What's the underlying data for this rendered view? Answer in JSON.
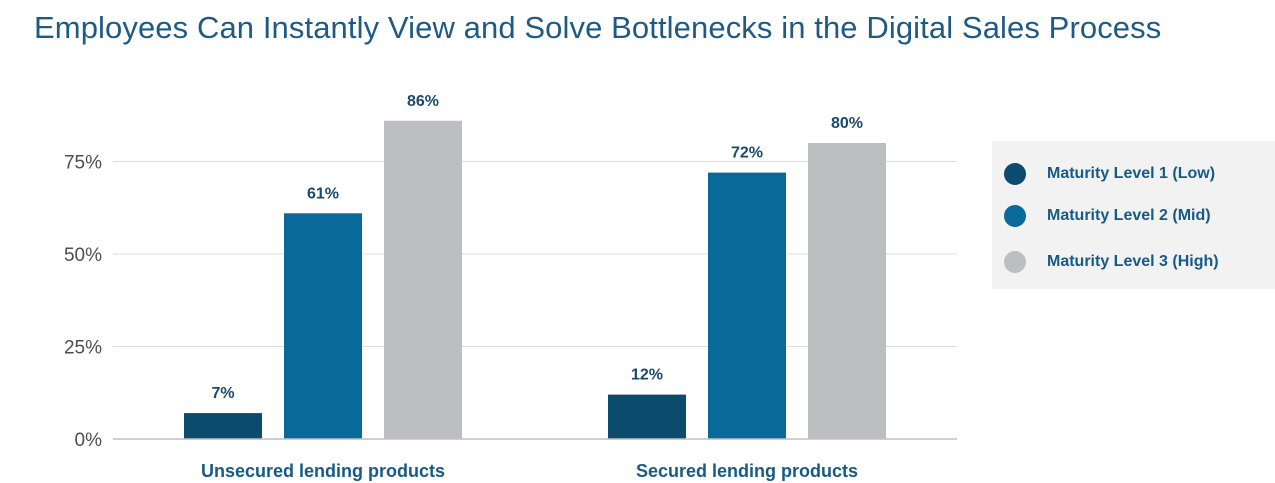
{
  "chart_data": {
    "type": "bar",
    "title": "Employees Can Instantly View and Solve Bottlenecks in the Digital Sales Process",
    "categories": [
      "Unsecured lending products",
      "Secured lending products"
    ],
    "series": [
      {
        "name": "Maturity Level 1 (Low)",
        "color": "#0a4b6e",
        "values": [
          7,
          12
        ],
        "labels": [
          "7%",
          "12%"
        ]
      },
      {
        "name": "Maturity Level 2 (Mid)",
        "color": "#076a9b",
        "values": [
          61,
          72
        ],
        "labels": [
          "61%",
          "72%"
        ]
      },
      {
        "name": "Maturity Level 3 (High)",
        "color": "#bdbec0",
        "values": [
          86,
          80
        ],
        "labels": [
          "86%",
          "80%"
        ]
      }
    ],
    "y_ticks": [
      {
        "value": 0,
        "label": "0%"
      },
      {
        "value": 25,
        "label": "25%"
      },
      {
        "value": 50,
        "label": "50%"
      },
      {
        "value": 75,
        "label": "75%"
      }
    ],
    "ylim": [
      0,
      100
    ],
    "xlabel": "",
    "ylabel": "",
    "grid": true,
    "legend_position": "right"
  }
}
